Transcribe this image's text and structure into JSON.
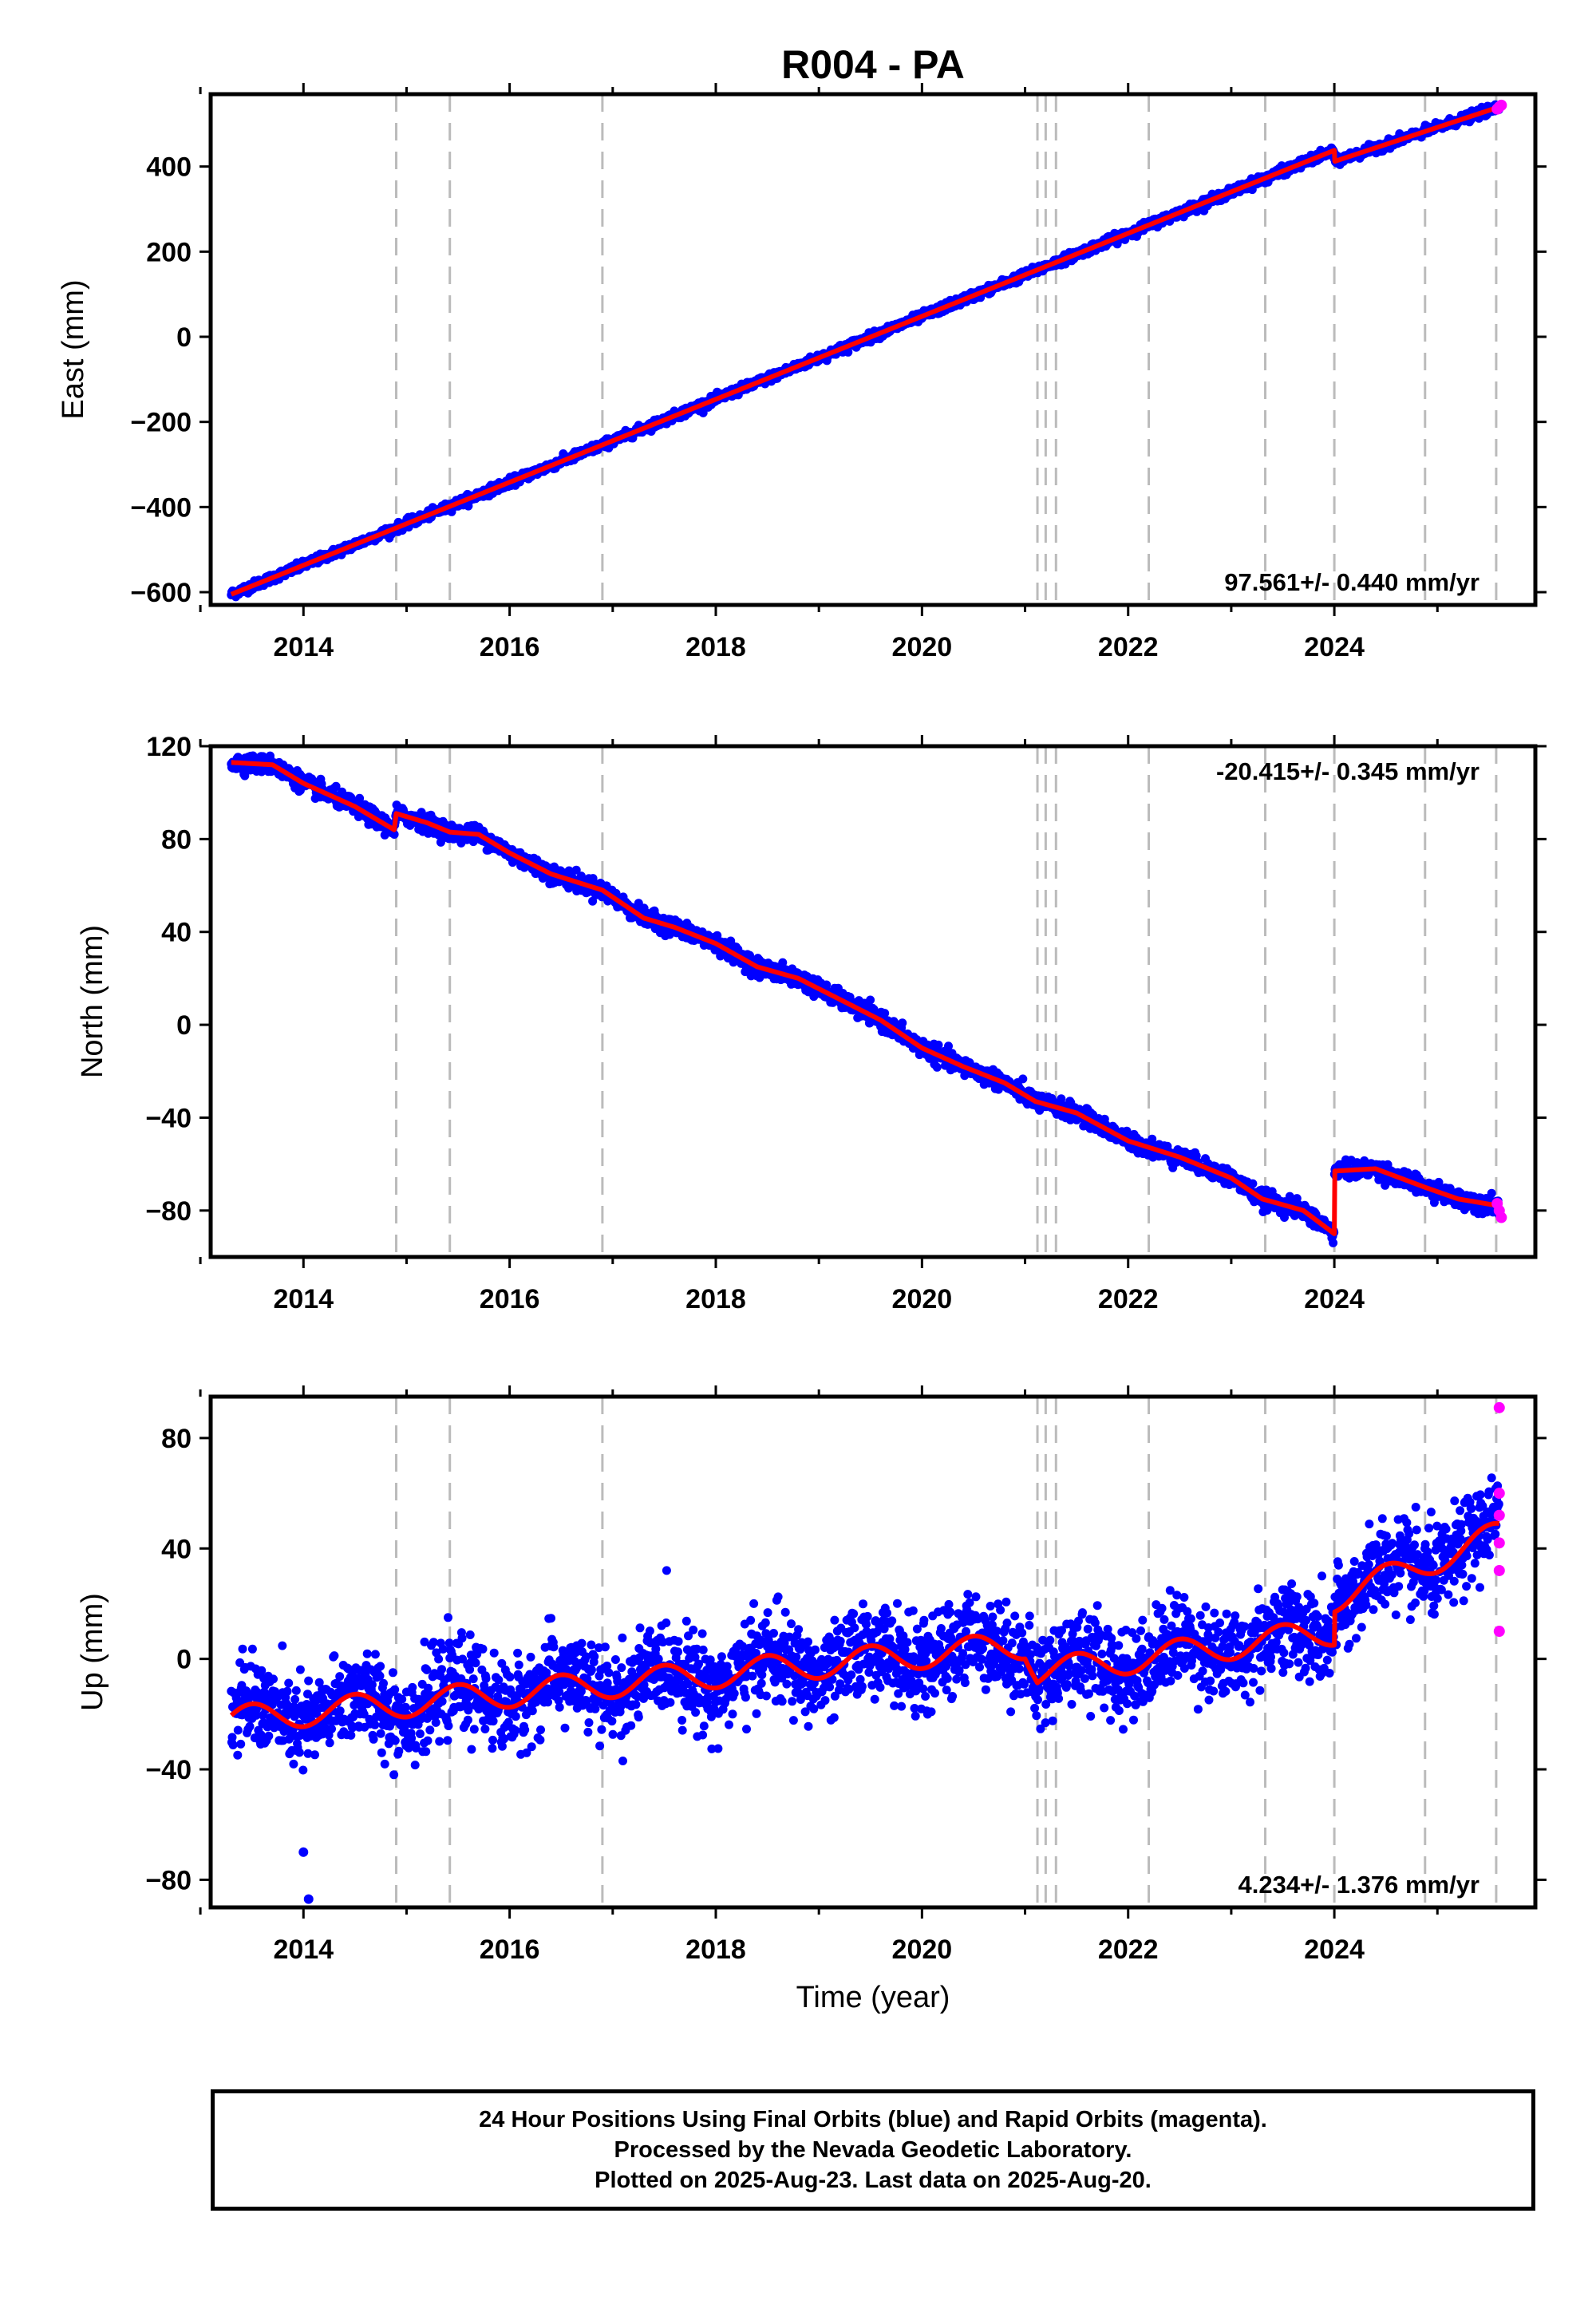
{
  "title": "R004 - PA",
  "xlabel": "Time (year)",
  "footer": {
    "line1": "24 Hour Positions Using Final Orbits (blue) and Rapid Orbits (magenta).",
    "line2": "Processed by the Nevada Geodetic Laboratory.",
    "line3": "Plotted on 2025-Aug-23. Last data on 2025-Aug-20."
  },
  "colors": {
    "final_points": "#0000ff",
    "rapid_points": "#ff00ff",
    "model": "#ff0000",
    "event_lines": "#bbbbbb"
  },
  "chart_data": [
    {
      "type": "scatter",
      "component": "east",
      "ylabel": "East (mm)",
      "xlim": [
        2013.1,
        2025.95
      ],
      "ylim": [
        -630,
        570
      ],
      "yticks": [
        -600,
        -400,
        -200,
        0,
        200,
        400
      ],
      "xticks": [
        2014,
        2016,
        2018,
        2020,
        2022,
        2024
      ],
      "rate_label": "97.561+/- 0.440 mm/yr",
      "rate_position": "bottom-right",
      "event_lines": [
        2014.9,
        2015.42,
        2016.9,
        2021.12,
        2021.2,
        2021.3,
        2022.2,
        2023.33,
        2024.0,
        2024.88,
        2025.57
      ],
      "trend": {
        "x": [
          2013.3,
          2024.0,
          2024.001,
          2025.6
        ],
        "y": [
          -605,
          438,
          412,
          540
        ]
      },
      "noise_mm": 5,
      "rapid": {
        "x": [
          2025.58,
          2025.6,
          2025.62
        ],
        "y": [
          535,
          540,
          544
        ]
      }
    },
    {
      "type": "scatter",
      "component": "north",
      "ylabel": "North (mm)",
      "xlim": [
        2013.1,
        2025.95
      ],
      "ylim": [
        -100,
        120
      ],
      "yticks": [
        -80,
        -40,
        0,
        40,
        80,
        120
      ],
      "xticks": [
        2014,
        2016,
        2018,
        2020,
        2022,
        2024
      ],
      "rate_label": "-20.415+/- 0.345 mm/yr",
      "rate_position": "top-right",
      "event_lines": [
        2014.9,
        2015.42,
        2016.9,
        2021.12,
        2021.2,
        2021.3,
        2022.2,
        2023.33,
        2024.0,
        2024.88,
        2025.57
      ],
      "trend": {
        "x": [
          2013.3,
          2013.7,
          2014.0,
          2014.5,
          2014.88,
          2014.9,
          2015.2,
          2015.42,
          2015.7,
          2016.0,
          2016.4,
          2016.9,
          2017.3,
          2017.6,
          2018.0,
          2018.4,
          2018.8,
          2019.2,
          2019.6,
          2020.0,
          2020.4,
          2020.8,
          2021.1,
          2021.5,
          2022.0,
          2022.5,
          2023.0,
          2023.3,
          2023.7,
          2024.0,
          2024.001,
          2024.4,
          2024.88,
          2025.2,
          2025.6
        ],
        "y": [
          113,
          112,
          104,
          94,
          84,
          91,
          87,
          83,
          82,
          74,
          65,
          58,
          46,
          42,
          35,
          25,
          20,
          11,
          2,
          -10,
          -18,
          -25,
          -33,
          -38,
          -50,
          -57,
          -66,
          -75,
          -80,
          -90,
          -63,
          -62,
          -70,
          -75,
          -78
        ]
      },
      "noise_mm": 1.8,
      "rapid": {
        "x": [
          2025.58,
          2025.6,
          2025.62
        ],
        "y": [
          -77,
          -80,
          -83
        ]
      }
    },
    {
      "type": "scatter",
      "component": "up",
      "ylabel": "Up (mm)",
      "xlim": [
        2013.1,
        2025.95
      ],
      "ylim": [
        -90,
        95
      ],
      "yticks": [
        -80,
        -40,
        0,
        40,
        80
      ],
      "xticks": [
        2014,
        2016,
        2018,
        2020,
        2022,
        2024
      ],
      "rate_label": "4.234+/- 1.376 mm/yr",
      "rate_position": "bottom-right",
      "event_lines": [
        2014.9,
        2015.42,
        2016.9,
        2021.12,
        2021.2,
        2021.3,
        2022.2,
        2023.33,
        2024.0,
        2024.88,
        2025.57
      ],
      "trend": {
        "x": [
          2013.3,
          2021.0,
          2021.12,
          2024.0,
          2024.001,
          2025.6
        ],
        "y": [
          -22,
          5,
          -5,
          10,
          22,
          45
        ]
      },
      "seasonal_amplitude_mm": 5,
      "noise_mm": 8,
      "outliers": {
        "x": [
          2014.0,
          2014.05
        ],
        "y": [
          -70,
          -87
        ]
      },
      "rapid": {
        "x": [
          2025.6,
          2025.6,
          2025.6,
          2025.6,
          2025.6,
          2025.6
        ],
        "y": [
          91,
          60,
          52,
          42,
          32,
          10
        ]
      }
    }
  ]
}
